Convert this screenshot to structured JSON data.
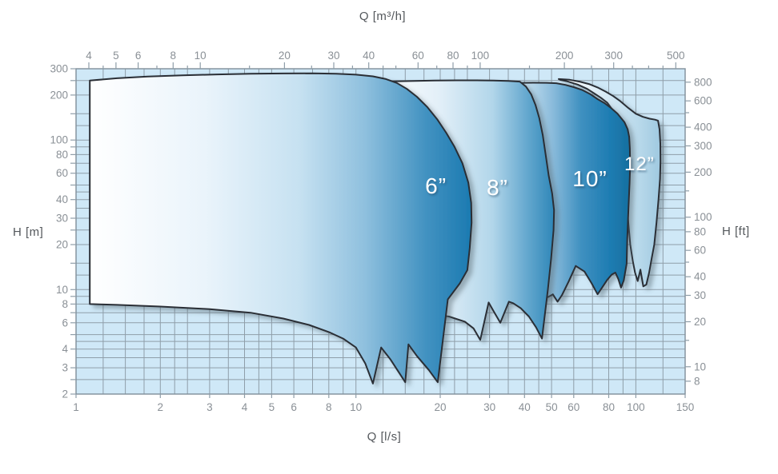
{
  "titles": {
    "top": "Q [m³/h]",
    "bottom": "Q [l/s]",
    "left": "H [m]",
    "right": "H [ft]"
  },
  "colors": {
    "page_bg": "#ffffff",
    "plot_bg": "#cfe8f7",
    "grid_line": "#8f9ea9",
    "plot_border": "#7f8e99",
    "tick_text": "#8a9096",
    "title_text": "#54585c",
    "envelope_outline": "#2b2f36",
    "envelope_shadow": "#4f616c",
    "envelope_label_text": "#ffffff"
  },
  "chart_data": {
    "type": "area",
    "title": "Pump family operating envelopes (flow Q vs head H), log-log scales",
    "axes": {
      "bottom": {
        "label": "Q [l/s]",
        "scale": "log",
        "range": [
          1,
          150
        ],
        "tick_labels": [
          1,
          2,
          3,
          4,
          5,
          6,
          8,
          10,
          20,
          30,
          40,
          50,
          60,
          80,
          100,
          150
        ]
      },
      "top": {
        "label": "Q [m³/h]",
        "scale": "log",
        "range": [
          3.6,
          540
        ],
        "conversion": "1 l/s = 3.6 m³/h",
        "tick_labels": [
          4,
          5,
          6,
          8,
          10,
          20,
          30,
          40,
          60,
          80,
          100,
          200,
          300,
          500
        ],
        "minor_ticks": [
          4.5,
          7,
          9,
          15,
          25,
          35,
          45,
          50,
          70,
          90,
          150,
          250,
          350,
          400,
          450
        ]
      },
      "left": {
        "label": "H [m]",
        "scale": "log",
        "range": [
          2,
          300
        ],
        "tick_labels": [
          300,
          200,
          100,
          80,
          60,
          40,
          30,
          20,
          10,
          8,
          6,
          4,
          3,
          2
        ],
        "minor_ticks": [
          250,
          150,
          90,
          70,
          50,
          25,
          15,
          9,
          7,
          5,
          2.5
        ]
      },
      "right": {
        "label": "H [ft]",
        "scale": "log",
        "range": [
          6.56,
          984
        ],
        "conversion": "1 m = 3.2808 ft",
        "tick_labels": [
          800,
          600,
          400,
          300,
          200,
          100,
          80,
          60,
          40,
          30,
          20,
          10,
          8
        ],
        "minor_ticks": [
          500,
          150,
          50,
          15
        ]
      }
    },
    "grid": {
      "on": true,
      "vertical_multipliers": [
        1,
        1.25,
        1.5,
        1.75,
        2,
        2.25,
        2.5,
        3,
        3.5,
        4,
        4.5,
        5,
        6,
        7,
        8,
        9
      ],
      "horizontal_multipliers": [
        1,
        1.25,
        1.5,
        2,
        2.5,
        3,
        3.5,
        4,
        4.5,
        5,
        6,
        7,
        8,
        9
      ]
    },
    "series": [
      {
        "name": "12-inch",
        "label": "12”",
        "label_q": 103,
        "label_h": 63,
        "label_size": 24,
        "q_min": 53,
        "q_max": 122.5,
        "gradient_stops": [
          [
            0,
            "#ffffff"
          ],
          [
            0.45,
            "#d8eaf5"
          ],
          [
            0.8,
            "#b7d8ea"
          ],
          [
            1,
            "#9fc9e0"
          ]
        ],
        "points": [
          [
            53,
            256
          ],
          [
            58,
            253
          ],
          [
            63,
            246
          ],
          [
            68,
            237
          ],
          [
            73,
            225
          ],
          [
            78,
            211
          ],
          [
            83,
            197
          ],
          [
            88,
            182
          ],
          [
            94,
            164
          ],
          [
            100,
            150
          ],
          [
            106,
            143
          ],
          [
            112,
            139
          ],
          [
            117,
            137
          ],
          [
            120,
            135
          ],
          [
            121.5,
            118
          ],
          [
            122.3,
            95
          ],
          [
            122.5,
            72
          ],
          [
            122,
            55
          ],
          [
            120.5,
            40
          ],
          [
            118.5,
            28
          ],
          [
            116.3,
            20
          ],
          [
            114,
            16.3
          ],
          [
            111.5,
            13
          ],
          [
            109,
            10.8
          ],
          [
            106.3,
            10.5
          ],
          [
            103.8,
            13.6
          ],
          [
            101.5,
            11.4
          ],
          [
            99.3,
            13
          ],
          [
            97.5,
            15.5
          ],
          [
            95.5,
            20
          ],
          [
            94,
            28
          ],
          [
            92.5,
            40
          ],
          [
            91,
            58
          ],
          [
            89.5,
            80
          ],
          [
            88,
            100
          ],
          [
            86.5,
            120
          ],
          [
            84.5,
            145
          ],
          [
            82,
            162
          ],
          [
            79,
            178
          ],
          [
            75,
            192
          ],
          [
            71,
            205
          ],
          [
            67,
            220
          ],
          [
            62,
            235
          ],
          [
            57,
            247
          ],
          [
            54,
            252
          ]
        ]
      },
      {
        "name": "10-inch",
        "label": "10”",
        "label_q": 68.5,
        "label_h": 49,
        "label_size": 28,
        "q_min": 30,
        "q_max": 95.4,
        "gradient_stops": [
          [
            0,
            "#ffffff"
          ],
          [
            0.2,
            "#d5e9f5"
          ],
          [
            0.45,
            "#8abbdb"
          ],
          [
            0.65,
            "#3f90c0"
          ],
          [
            0.85,
            "#1f7db3"
          ],
          [
            1,
            "#166f9f"
          ]
        ],
        "points": [
          [
            30,
            9.5
          ],
          [
            30,
            236
          ],
          [
            34,
            239
          ],
          [
            38,
            241
          ],
          [
            43,
            242
          ],
          [
            48,
            241.5
          ],
          [
            52,
            240
          ],
          [
            56,
            234
          ],
          [
            60,
            226
          ],
          [
            64.5,
            216
          ],
          [
            68.7,
            203
          ],
          [
            73,
            188
          ],
          [
            77.5,
            176
          ],
          [
            81.5,
            164
          ],
          [
            86,
            150
          ],
          [
            91,
            132
          ],
          [
            93.5,
            118
          ],
          [
            94.7,
            105
          ],
          [
            95.2,
            88
          ],
          [
            95.4,
            68
          ],
          [
            95,
            52
          ],
          [
            94.2,
            36
          ],
          [
            93.2,
            22
          ],
          [
            92.7,
            14.9
          ],
          [
            90.5,
            11.5
          ],
          [
            88.5,
            10.3
          ],
          [
            86.5,
            11.8
          ],
          [
            84.5,
            13
          ],
          [
            82,
            12.6
          ],
          [
            79,
            11.6
          ],
          [
            76,
            10.4
          ],
          [
            73,
            9.3
          ],
          [
            69.5,
            11
          ],
          [
            65.5,
            13.2
          ],
          [
            61,
            14.4
          ],
          [
            57.5,
            11.3
          ],
          [
            54.5,
            9.2
          ],
          [
            52.5,
            8.3
          ],
          [
            50.5,
            9.3
          ],
          [
            48.5,
            8.9
          ],
          [
            44,
            8.6
          ],
          [
            38,
            8.8
          ],
          [
            33,
            9.2
          ]
        ]
      },
      {
        "name": "8-inch",
        "label": "8”",
        "label_q": 32,
        "label_h": 43,
        "label_size": 28,
        "q_min": 12,
        "q_max": 51,
        "gradient_stops": [
          [
            0,
            "#ffffff"
          ],
          [
            0.35,
            "#e2eff8"
          ],
          [
            0.65,
            "#b2d6ea"
          ],
          [
            0.85,
            "#63a7ce"
          ],
          [
            1,
            "#2e86b8"
          ]
        ],
        "points": [
          [
            12,
            7.3
          ],
          [
            12,
            246
          ],
          [
            15,
            248
          ],
          [
            19,
            250
          ],
          [
            23,
            251
          ],
          [
            27,
            250.8
          ],
          [
            31,
            250
          ],
          [
            35,
            248.5
          ],
          [
            38.5,
            246
          ],
          [
            40.5,
            228
          ],
          [
            42.3,
            202
          ],
          [
            43.8,
            172
          ],
          [
            45.2,
            140
          ],
          [
            46.5,
            108
          ],
          [
            47.6,
            80
          ],
          [
            48.8,
            58
          ],
          [
            50.2,
            44
          ],
          [
            51,
            34
          ],
          [
            50.8,
            25
          ],
          [
            49.8,
            16
          ],
          [
            48.5,
            10
          ],
          [
            46.2,
            4.7
          ],
          [
            44,
            5.6
          ],
          [
            41.5,
            6.6
          ],
          [
            38.8,
            7.5
          ],
          [
            36.5,
            8.1
          ],
          [
            35.2,
            8.3
          ],
          [
            32.8,
            6
          ],
          [
            31,
            7.2
          ],
          [
            29.8,
            8.2
          ],
          [
            27.8,
            4.6
          ],
          [
            26.3,
            5.5
          ],
          [
            24.5,
            6.1
          ],
          [
            21.5,
            6.6
          ],
          [
            18,
            6.9
          ],
          [
            14.5,
            7.2
          ]
        ]
      },
      {
        "name": "6-inch",
        "label": "6”",
        "label_q": 19.3,
        "label_h": 44,
        "label_size": 28,
        "q_min": 1.12,
        "q_max": 25.9,
        "gradient_stops": [
          [
            0,
            "#ffffff"
          ],
          [
            0.3,
            "#eaf4fb"
          ],
          [
            0.55,
            "#c6e1f1"
          ],
          [
            0.72,
            "#8fc0de"
          ],
          [
            0.88,
            "#4292c1"
          ],
          [
            1,
            "#1b7ab1"
          ]
        ],
        "points": [
          [
            1.12,
            8
          ],
          [
            1.12,
            250
          ],
          [
            1.4,
            259
          ],
          [
            1.8,
            266
          ],
          [
            2.4,
            271
          ],
          [
            3.2,
            275
          ],
          [
            4.2,
            277.5
          ],
          [
            5.5,
            279
          ],
          [
            7,
            279.5
          ],
          [
            8.5,
            278
          ],
          [
            10,
            274
          ],
          [
            11.5,
            267
          ],
          [
            12.8,
            256
          ],
          [
            14,
            241
          ],
          [
            15.2,
            220
          ],
          [
            16.5,
            195
          ],
          [
            18,
            166
          ],
          [
            19.5,
            138
          ],
          [
            21,
            112
          ],
          [
            22.5,
            90
          ],
          [
            24,
            70
          ],
          [
            25.2,
            52
          ],
          [
            25.8,
            38
          ],
          [
            25.9,
            28
          ],
          [
            25.5,
            19
          ],
          [
            25,
            13.5
          ],
          [
            23.5,
            11
          ],
          [
            21.3,
            8.6
          ],
          [
            19.6,
            2.4
          ],
          [
            18.2,
            2.9
          ],
          [
            16.5,
            3.6
          ],
          [
            15.4,
            4.3
          ],
          [
            15,
            2.4
          ],
          [
            14.4,
            2.7
          ],
          [
            13.3,
            3.4
          ],
          [
            12.3,
            4.1
          ],
          [
            11.5,
            2.35
          ],
          [
            10.8,
            3.2
          ],
          [
            10,
            4.1
          ],
          [
            9,
            4.7
          ],
          [
            8,
            5.2
          ],
          [
            6.8,
            5.8
          ],
          [
            5.5,
            6.4
          ],
          [
            4.2,
            7
          ],
          [
            3,
            7.4
          ],
          [
            2,
            7.7
          ],
          [
            1.4,
            7.9
          ]
        ]
      }
    ]
  }
}
